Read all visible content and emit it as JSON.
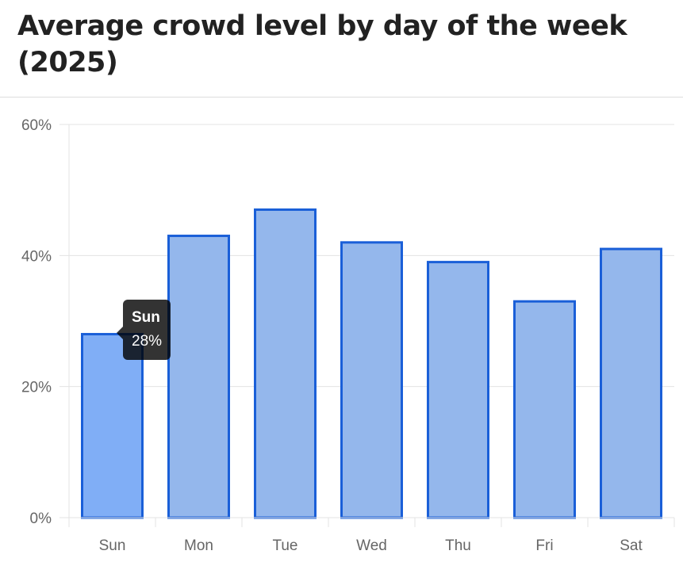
{
  "chart_data": {
    "type": "bar",
    "title": "Average crowd level by day of the week (2025)",
    "categories": [
      "Sun",
      "Mon",
      "Tue",
      "Wed",
      "Thu",
      "Fri",
      "Sat"
    ],
    "values": [
      28,
      43,
      47,
      42,
      39,
      33,
      41
    ],
    "ylim": [
      0,
      60
    ],
    "yticks": [
      "0%",
      "20%",
      "40%",
      "60%"
    ],
    "ytick_values": [
      0,
      20,
      40,
      60
    ],
    "xlabel": "",
    "ylabel": "",
    "grid": true,
    "colors": {
      "bar": "#94b7ec",
      "bar_active": "#80aef6",
      "border": "#1a5fd8"
    },
    "tooltip": {
      "title": "Sun",
      "value": "28%"
    }
  }
}
